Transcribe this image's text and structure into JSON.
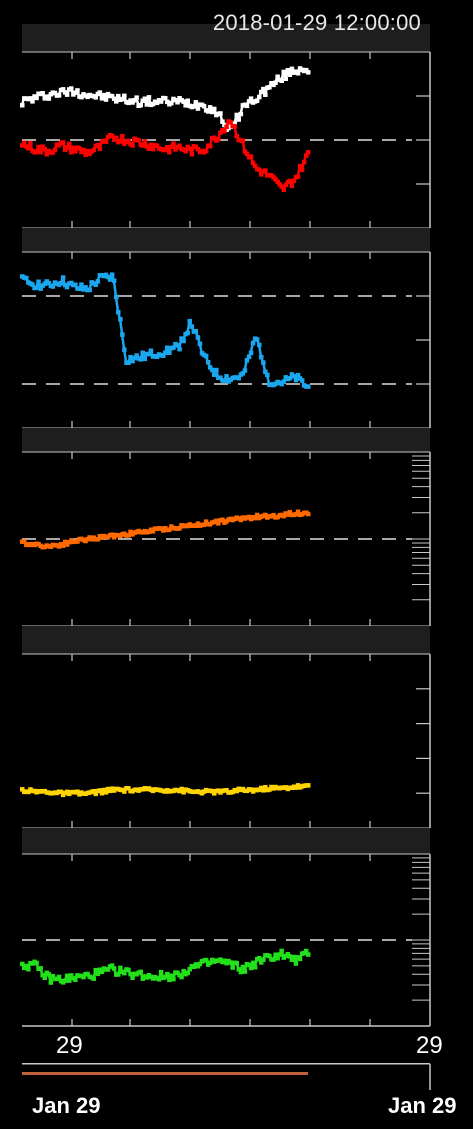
{
  "header": {
    "timestamp": "2018-01-29 12:00:00"
  },
  "axis": {
    "tick_left": "29",
    "tick_right": "29",
    "date_left": "Jan 29",
    "date_right": "Jan 29"
  },
  "colors": {
    "background": "#000000",
    "panel_header": "#1e1e1e",
    "frame": "#c8c8c8",
    "white_series": "#ffffff",
    "red_series": "#ff0000",
    "blue_series": "#1aa7f0",
    "orange_series": "#ff6a00",
    "yellow_series": "#ffd400",
    "green_series": "#22e01a",
    "timebar": "#c0623a"
  },
  "chart_data": [
    {
      "type": "scatter",
      "series": [
        {
          "color": "#ffffff",
          "values": [
            0.72,
            0.74,
            0.76,
            0.77,
            0.78,
            0.76,
            0.75,
            0.74,
            0.73,
            0.72,
            0.72,
            0.72,
            0.72,
            0.71,
            0.7,
            0.66,
            0.55,
            0.69,
            0.74,
            0.8,
            0.86,
            0.9,
            0.91
          ]
        },
        {
          "color": "#ff0000",
          "values": [
            0.48,
            0.45,
            0.44,
            0.47,
            0.45,
            0.43,
            0.46,
            0.52,
            0.5,
            0.49,
            0.47,
            0.45,
            0.46,
            0.44,
            0.45,
            0.52,
            0.62,
            0.47,
            0.34,
            0.3,
            0.22,
            0.28,
            0.42
          ]
        }
      ]
    },
    {
      "type": "scatter",
      "series": [
        {
          "color": "#1aa7f0",
          "values": [
            0.84,
            0.82,
            0.81,
            0.84,
            0.8,
            0.79,
            0.85,
            0.86,
            0.39,
            0.4,
            0.42,
            0.44,
            0.46,
            0.6,
            0.4,
            0.3,
            0.28,
            0.3,
            0.52,
            0.27,
            0.26,
            0.29,
            0.23
          ]
        }
      ]
    },
    {
      "type": "scatter",
      "series": [
        {
          "color": "#ff6a00",
          "values": [
            0.48,
            0.47,
            0.46,
            0.47,
            0.49,
            0.5,
            0.51,
            0.52,
            0.53,
            0.54,
            0.55,
            0.56,
            0.57,
            0.58,
            0.59,
            0.6,
            0.61,
            0.62,
            0.63,
            0.63,
            0.64,
            0.65,
            0.65
          ]
        }
      ]
    },
    {
      "type": "scatter",
      "series": [
        {
          "color": "#ffd400",
          "values": [
            0.22,
            0.21,
            0.21,
            0.2,
            0.2,
            0.2,
            0.21,
            0.22,
            0.22,
            0.22,
            0.22,
            0.22,
            0.22,
            0.21,
            0.21,
            0.21,
            0.21,
            0.22,
            0.22,
            0.23,
            0.23,
            0.24,
            0.24
          ]
        }
      ]
    },
    {
      "type": "scatter",
      "series": [
        {
          "color": "#22e01a",
          "values": [
            0.36,
            0.35,
            0.28,
            0.27,
            0.28,
            0.29,
            0.31,
            0.33,
            0.31,
            0.3,
            0.29,
            0.29,
            0.3,
            0.34,
            0.36,
            0.38,
            0.36,
            0.33,
            0.37,
            0.4,
            0.42,
            0.38,
            0.42
          ]
        }
      ]
    }
  ]
}
